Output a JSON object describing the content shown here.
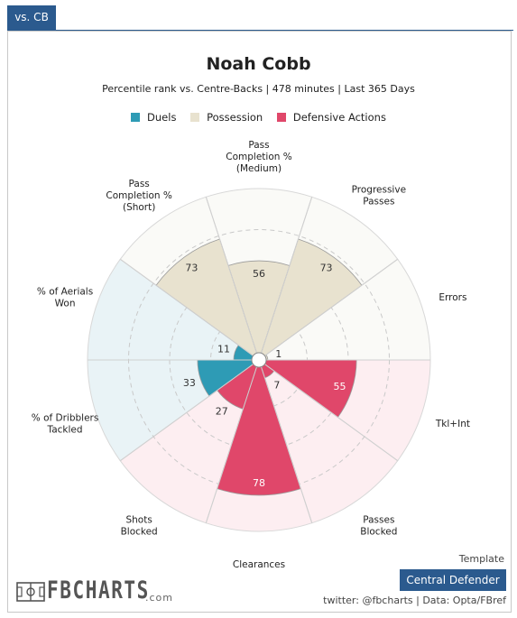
{
  "tab_label": "vs. CB",
  "chart_data": {
    "type": "polar-bar",
    "title": "Noah Cobb",
    "subtitle": "Percentile rank vs. Centre-Backs | 478 minutes | Last 365 Days",
    "rlim": [
      0,
      100
    ],
    "legend": [
      {
        "name": "Duels",
        "color": "#2e9bb5"
      },
      {
        "name": "Possession",
        "color": "#e8e2cf"
      },
      {
        "name": "Defensive Actions",
        "color": "#e0476a"
      }
    ],
    "categories": [
      {
        "label": [
          "Pass",
          "Completion %",
          "(Medium)"
        ],
        "group": "Possession",
        "value": 56
      },
      {
        "label": [
          "Progressive",
          "Passes"
        ],
        "group": "Possession",
        "value": 73
      },
      {
        "label": [
          "Errors"
        ],
        "group": "Possession",
        "value": 1
      },
      {
        "label": [
          "Tkl+Int"
        ],
        "group": "Defensive Actions",
        "value": 55
      },
      {
        "label": [
          "Passes",
          "Blocked"
        ],
        "group": "Defensive Actions",
        "value": 7
      },
      {
        "label": [
          "Clearances"
        ],
        "group": "Defensive Actions",
        "value": 78
      },
      {
        "label": [
          "Shots",
          "Blocked"
        ],
        "group": "Defensive Actions",
        "value": 27
      },
      {
        "label": [
          "% of Dribblers",
          "Tackled"
        ],
        "group": "Duels",
        "value": 33
      },
      {
        "label": [
          "% of Aerials",
          "Won"
        ],
        "group": "Duels",
        "value": 11
      },
      {
        "label": [
          "Pass",
          "Completion %",
          "(Short)"
        ],
        "group": "Possession",
        "value": 73
      }
    ]
  },
  "footer": {
    "template_label": "Template",
    "template_badge": "Central Defender",
    "credit": "twitter: @fbcharts | Data: Opta/FBref",
    "logo_text": "FBCHARTS",
    "logo_suffix": ".com"
  },
  "colors": {
    "accent": "#2b5a8e",
    "duels_bg": "#e9f3f6",
    "possession_bg": "#fafaf7",
    "defensive_bg": "#fdeef1"
  }
}
